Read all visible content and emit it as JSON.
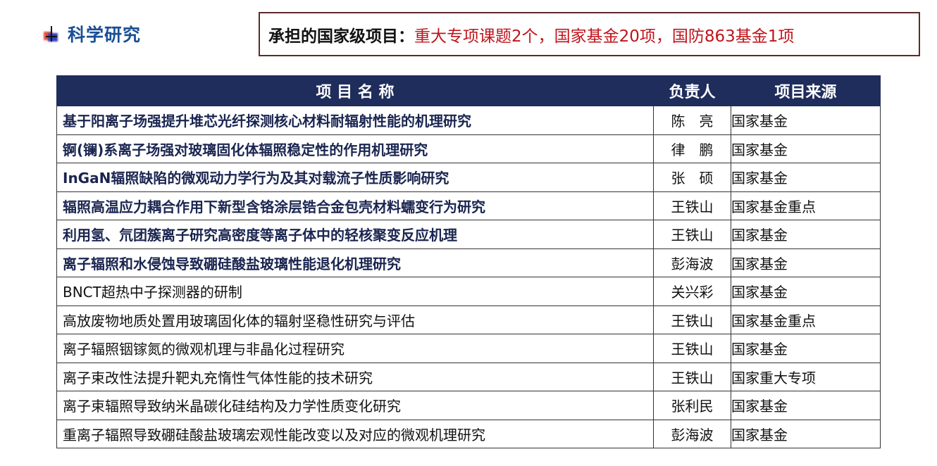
{
  "section_title": "科学研究",
  "headline": {
    "label": "承担的国家级项目：",
    "value": "重大专项课题2个，国家基金20项，国防863基金1项"
  },
  "table": {
    "headers": [
      "项 目 名 称",
      "负责人",
      "项目来源"
    ],
    "rows": [
      {
        "name": "基于阳离子场强提升堆芯光纤探测核心材料耐辐射性能的机理研究",
        "person": "陈　亮",
        "source": "国家基金",
        "bold": true
      },
      {
        "name": "锕(镧)系离子场强对玻璃固化体辐照稳定性的作用机理研究",
        "person": "律　鹏",
        "source": "国家基金",
        "bold": true
      },
      {
        "name": "InGaN辐照缺陷的微观动力学行为及其对载流子性质影响研究",
        "person": "张　硕",
        "source": "国家基金",
        "bold": true
      },
      {
        "name": "辐照高温应力耦合作用下新型含铬涂层锆合金包壳材料蠕变行为研究",
        "person": "王铁山",
        "source": "国家基金重点",
        "bold": true
      },
      {
        "name": "利用氢、氘团簇离子研究高密度等离子体中的轻核聚变反应机理",
        "person": "王铁山",
        "source": "国家基金",
        "bold": true
      },
      {
        "name": "离子辐照和水侵蚀导致硼硅酸盐玻璃性能退化机理研究",
        "person": "彭海波",
        "source": "国家基金",
        "bold": true
      },
      {
        "name": "BNCT超热中子探测器的研制",
        "person": "关兴彩",
        "source": "国家基金",
        "bold": false
      },
      {
        "name": "高放废物地质处置用玻璃固化体的辐射坚稳性研究与评估",
        "person": "王铁山",
        "source": "国家基金重点",
        "bold": false
      },
      {
        "name": "离子辐照铟镓氮的微观机理与非晶化过程研究",
        "person": "王铁山",
        "source": "国家基金",
        "bold": false
      },
      {
        "name": "离子束改性法提升靶丸充惰性气体性能的技术研究",
        "person": "王铁山",
        "source": "国家重大专项",
        "bold": false
      },
      {
        "name": "离子束辐照导致纳米晶碳化硅结构及力学性质变化研究",
        "person": "张利民",
        "source": "国家基金",
        "bold": false
      },
      {
        "name": "重离子辐照导致硼硅酸盐玻璃宏观性能改变以及对应的微观机理研究",
        "person": "彭海波",
        "source": "国家基金",
        "bold": false
      }
    ]
  },
  "colors": {
    "header_bg": "#1f2d5c",
    "title_blue": "#1a4f95",
    "accent_red": "#c0141c",
    "source_red": "#8b2a2a"
  }
}
